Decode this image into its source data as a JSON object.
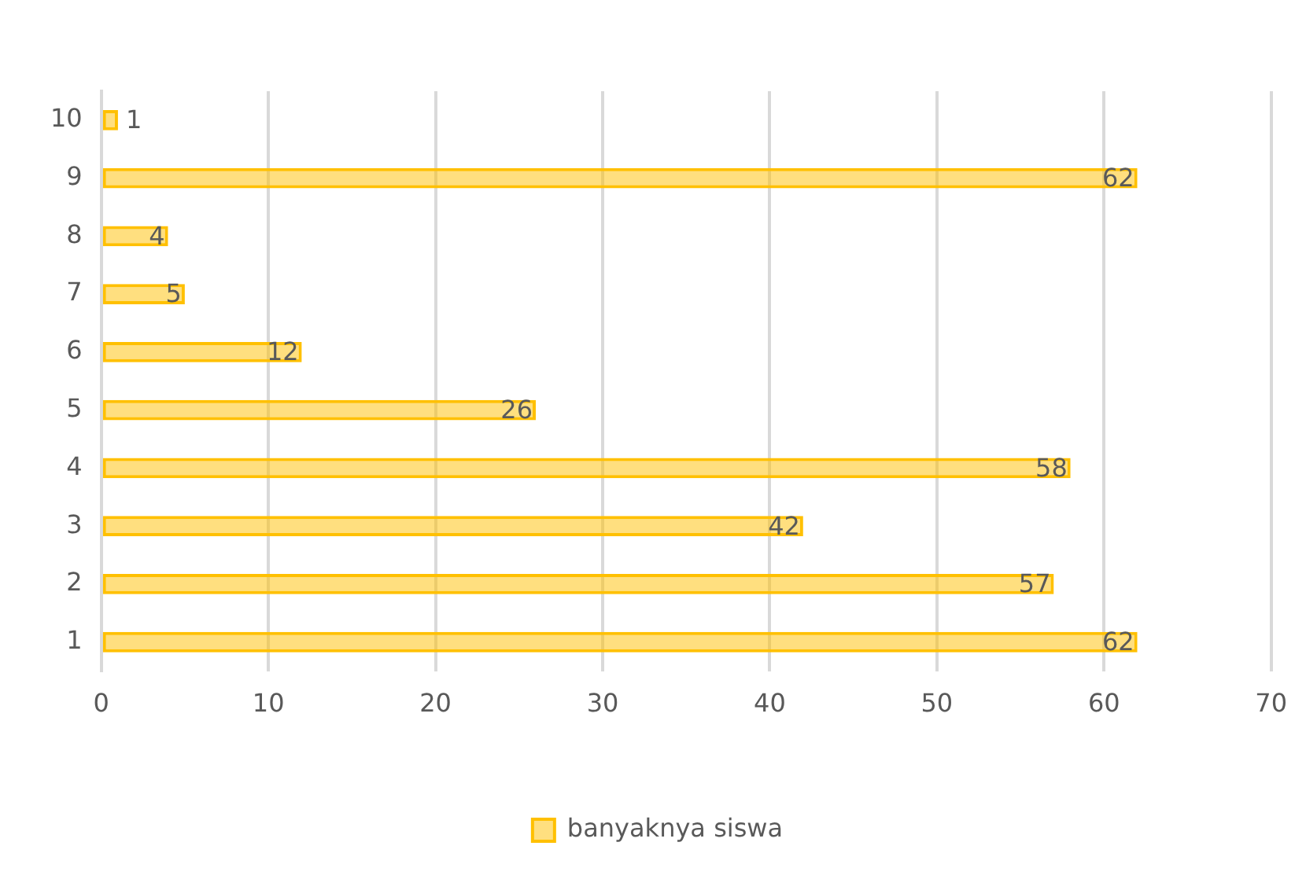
{
  "chart_data": {
    "type": "bar",
    "orientation": "horizontal",
    "categories": [
      "10",
      "9",
      "8",
      "7",
      "6",
      "5",
      "4",
      "3",
      "2",
      "1"
    ],
    "series": [
      {
        "name": "banyaknya siswa",
        "color": "#ffc000",
        "values": [
          1,
          62,
          4,
          5,
          12,
          26,
          58,
          42,
          57,
          62
        ]
      }
    ],
    "xlim": [
      0,
      70
    ],
    "xticks": [
      0,
      10,
      20,
      30,
      40,
      50,
      60,
      70
    ],
    "grid": "x",
    "legend": "bottom",
    "data_labels": true
  }
}
